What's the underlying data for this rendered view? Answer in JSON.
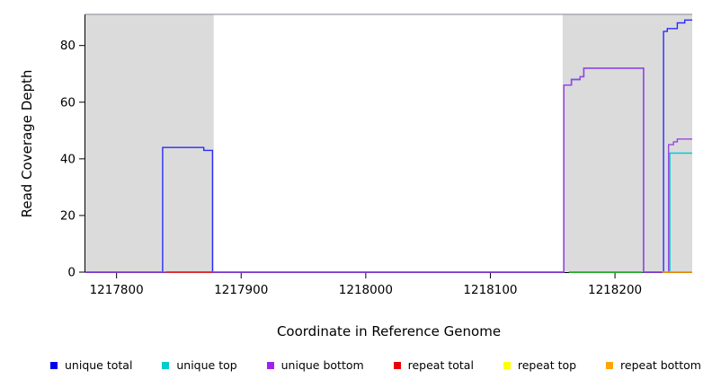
{
  "chart_data": {
    "type": "line",
    "title": "",
    "xlabel": "Coordinate in Reference Genome",
    "ylabel": "Read Coverage Depth",
    "xlim": [
      1217775,
      1218262
    ],
    "ylim": [
      0,
      91
    ],
    "xticks": [
      1217800,
      1217900,
      1218000,
      1218100,
      1218200
    ],
    "yticks": [
      0,
      20,
      40,
      60,
      80
    ],
    "grid": false,
    "legend_position": "bottom",
    "background_shading": {
      "color": "#DBDBDB",
      "regions": [
        [
          1217775,
          1217878
        ],
        [
          1218158,
          1218262
        ]
      ]
    },
    "top_border": {
      "y": 91,
      "color": "#9B9BA8"
    },
    "series": [
      {
        "name": "unique total",
        "color": "#2B2BFF",
        "points": [
          [
            1217775,
            0
          ],
          [
            1217837,
            0
          ],
          [
            1217837,
            44
          ],
          [
            1217870,
            44
          ],
          [
            1217870,
            43
          ],
          [
            1217877,
            43
          ],
          [
            1217877,
            0
          ],
          [
            1218159,
            0
          ],
          [
            1218159,
            66
          ],
          [
            1218165,
            66
          ],
          [
            1218165,
            68
          ],
          [
            1218172,
            68
          ],
          [
            1218172,
            69
          ],
          [
            1218175,
            69
          ],
          [
            1218175,
            72
          ],
          [
            1218223,
            72
          ],
          [
            1218223,
            0
          ],
          [
            1218239,
            0
          ],
          [
            1218239,
            85
          ],
          [
            1218242,
            85
          ],
          [
            1218242,
            86
          ],
          [
            1218250,
            86
          ],
          [
            1218250,
            88
          ],
          [
            1218256,
            88
          ],
          [
            1218256,
            89
          ],
          [
            1218262,
            89
          ]
        ]
      },
      {
        "name": "unique top",
        "color": "#00CDCD",
        "points": [
          [
            1218244,
            0
          ],
          [
            1218244,
            42
          ],
          [
            1218262,
            42
          ]
        ]
      },
      {
        "name": "unique bottom",
        "color": "#9B45E0",
        "points": [
          [
            1217775,
            0
          ],
          [
            1218159,
            0
          ],
          [
            1218159,
            66
          ],
          [
            1218165,
            66
          ],
          [
            1218165,
            68
          ],
          [
            1218172,
            68
          ],
          [
            1218172,
            69
          ],
          [
            1218175,
            69
          ],
          [
            1218175,
            72
          ],
          [
            1218223,
            72
          ],
          [
            1218223,
            0
          ],
          [
            1218243,
            0
          ],
          [
            1218243,
            45
          ],
          [
            1218247,
            45
          ],
          [
            1218247,
            46
          ],
          [
            1218250,
            46
          ],
          [
            1218250,
            47
          ],
          [
            1218262,
            47
          ]
        ]
      }
    ],
    "baseline_segments": [
      {
        "name": "repeat total baseline",
        "color": "#EE2C2C",
        "x1": 1217840,
        "x2": 1217877,
        "y": 0
      },
      {
        "name": "top-strand baseline overlap",
        "color": "#2DBE2D",
        "x1": 1218163,
        "x2": 1218222,
        "y": 0
      },
      {
        "name": "repeat bottom baseline",
        "color": "#FF9900",
        "x1": 1218238,
        "x2": 1218262,
        "y": 0
      }
    ],
    "legend": [
      {
        "label": "unique total",
        "color": "#0000EE"
      },
      {
        "label": "unique top",
        "color": "#00CDCD"
      },
      {
        "label": "unique bottom",
        "color": "#A020F0"
      },
      {
        "label": "repeat total",
        "color": "#EE0000"
      },
      {
        "label": "repeat top",
        "color": "#FFFF00"
      },
      {
        "label": "repeat bottom",
        "color": "#FFA500"
      }
    ]
  }
}
